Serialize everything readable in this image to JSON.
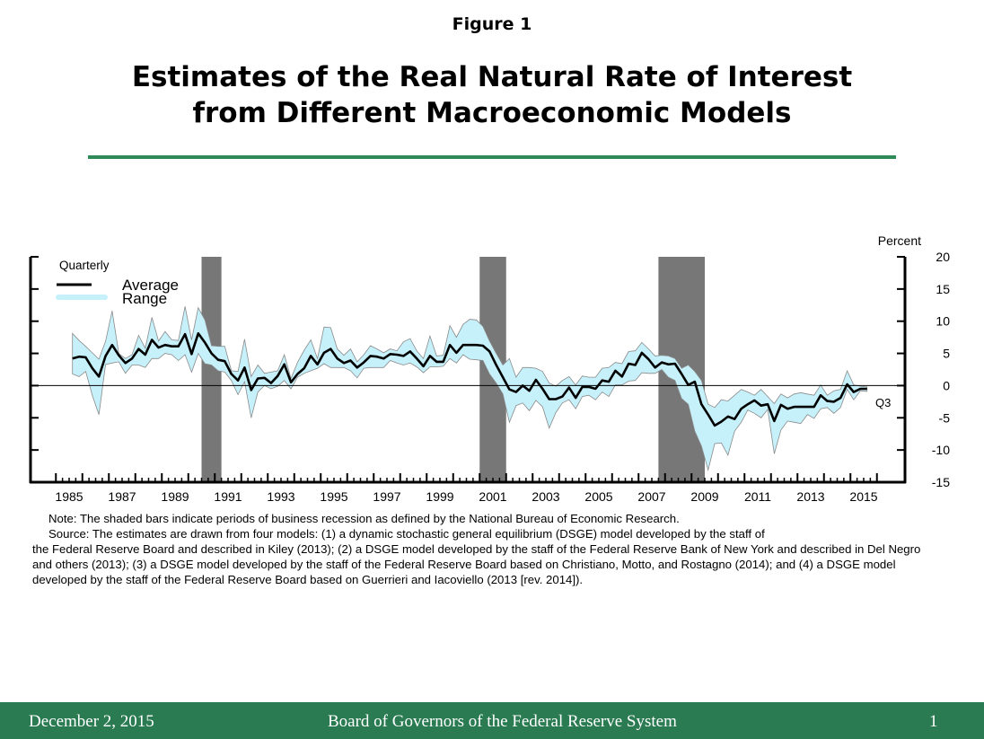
{
  "header": {
    "figure_label": "Figure 1",
    "title_line1": "Estimates of the Real Natural Rate of Interest",
    "title_line2": "from Different Macroeconomic Models"
  },
  "colors": {
    "accent_green": "#2a7b52",
    "range_fill": "#c6f1fb",
    "range_edge": "#8a8a8a",
    "average_line": "#000000",
    "recession": "#777777"
  },
  "chart_data": {
    "type": "line",
    "title": "",
    "ylabel": "Percent",
    "frequency_label": "Quarterly",
    "last_point_label": "Q3",
    "ylim": [
      -15,
      20
    ],
    "yticks": [
      20,
      15,
      10,
      5,
      0,
      -5,
      -10,
      -15
    ],
    "xlim": [
      1985,
      2016
    ],
    "xtick_labels": [
      "1985",
      "1987",
      "1989",
      "1991",
      "1993",
      "1995",
      "1997",
      "1999",
      "2001",
      "2003",
      "2005",
      "2007",
      "2009",
      "2011",
      "2013",
      "2015"
    ],
    "legend": {
      "placement": "top-left",
      "entries": [
        "Average",
        "Range"
      ]
    },
    "start": "1985Q3",
    "end": "2015Q3",
    "recessions": [
      [
        "1990Q3",
        "1991Q1"
      ],
      [
        "2001Q1",
        "2001Q4"
      ],
      [
        "2007Q4",
        "2009Q2"
      ]
    ],
    "series": [
      {
        "name": "Average",
        "values": [
          4.2,
          4.5,
          4.4,
          2.7,
          1.4,
          4.6,
          6.3,
          4.7,
          3.5,
          4.2,
          5.7,
          4.8,
          7.1,
          5.9,
          6.3,
          6.1,
          6.1,
          8.0,
          4.9,
          8.1,
          6.7,
          5.0,
          4.0,
          3.8,
          1.8,
          0.8,
          2.8,
          -0.7,
          1.1,
          1.2,
          0.4,
          1.5,
          3.3,
          0.5,
          1.8,
          2.7,
          4.6,
          3.3,
          5.1,
          5.7,
          4.2,
          3.5,
          3.9,
          2.8,
          3.6,
          4.6,
          4.5,
          4.2,
          4.9,
          4.8,
          4.6,
          5.3,
          4.2,
          3.0,
          4.6,
          3.7,
          3.7,
          6.3,
          5.1,
          6.3,
          6.3,
          6.3,
          6.2,
          5.3,
          3.2,
          1.3,
          -0.6,
          -1.0,
          0,
          -0.8,
          0.9,
          -0.5,
          -2.1,
          -2.1,
          -1.7,
          -0.3,
          -1.9,
          -0.2,
          -0.2,
          -0.5,
          0.8,
          0.6,
          2.3,
          1.4,
          3.4,
          3.2,
          5.1,
          4.1,
          2.8,
          3.6,
          3.3,
          3.4,
          1.8,
          0.1,
          0.6,
          -2.9,
          -4.5,
          -6.2,
          -5.6,
          -4.8,
          -5.2,
          -3.6,
          -2.9,
          -2.3,
          -3.1,
          -2.9,
          -5.5,
          -3.0,
          -3.6,
          -3.3,
          -3.3,
          -3.3,
          -3.3,
          -1.5,
          -2.4,
          -2.5,
          -1.9,
          0.2,
          -1.0,
          -0.5,
          -0.5
        ]
      },
      {
        "name": "Range",
        "low": [
          1.8,
          1.4,
          2.2,
          -1.5,
          -4.5,
          3.3,
          3.5,
          3.7,
          1.9,
          3.2,
          3.2,
          2.8,
          4.2,
          4.2,
          5.0,
          4.8,
          3.9,
          4.8,
          2.1,
          5.0,
          3.4,
          3.2,
          2.3,
          2.1,
          0.8,
          -1.4,
          0.6,
          -5.0,
          -1.0,
          0,
          -0.5,
          -0.1,
          0.8,
          -0.5,
          1.3,
          1.9,
          2.3,
          2.7,
          3.4,
          2.8,
          2.8,
          2.8,
          2.3,
          1.2,
          2.7,
          2.8,
          2.8,
          2.8,
          3.9,
          3.5,
          3.2,
          3.5,
          2.9,
          2.0,
          2.9,
          2.9,
          3.0,
          4.2,
          3.5,
          4.8,
          4.1,
          4.0,
          3.9,
          1.8,
          0.4,
          -1.3,
          -5.7,
          -3.1,
          -2.7,
          -3.9,
          -2.3,
          -3.3,
          -6.6,
          -4.2,
          -2.7,
          -2.2,
          -3.6,
          -1.7,
          -1.5,
          -2.2,
          -1.0,
          -1.7,
          0.1,
          0.1,
          0.7,
          0.8,
          2.0,
          1.9,
          1.9,
          2.5,
          1.3,
          0.8,
          -2.0,
          -2.9,
          -7.1,
          -9.4,
          -13.1,
          -9.0,
          -8.9,
          -10.8,
          -7.1,
          -5.7,
          -3.8,
          -4.3,
          -5.0,
          -3.7,
          -10.6,
          -6.9,
          -5.5,
          -5.7,
          -5.9,
          -4.5,
          -5.1,
          -3.6,
          -3.4,
          -4.3,
          -3.4,
          -0.6,
          -2.2,
          -0.8,
          -0.9
        ],
        "high": [
          8.1,
          7.0,
          6.1,
          5.1,
          4.1,
          6.9,
          11.6,
          5.0,
          4.2,
          4.8,
          7.8,
          5.8,
          10.6,
          6.9,
          8.4,
          7.1,
          7.0,
          12.3,
          7.1,
          12.1,
          10.2,
          6.2,
          6.1,
          6.1,
          2.3,
          2.2,
          7.2,
          1.4,
          3.2,
          1.9,
          2.1,
          2.3,
          4.8,
          1.1,
          3.6,
          5.5,
          7.1,
          4.2,
          9.1,
          9.0,
          5.7,
          4.7,
          5.7,
          3.7,
          4.8,
          6.2,
          5.7,
          5.1,
          5.7,
          5.4,
          6.8,
          7.3,
          5.4,
          4.2,
          7.7,
          4.6,
          4.7,
          9.3,
          7.5,
          9.5,
          10.3,
          10.2,
          9.2,
          6.9,
          5.0,
          3.2,
          4.2,
          1.3,
          2.8,
          2.8,
          2.7,
          2.2,
          0.4,
          -0.1,
          0.8,
          1.4,
          0.1,
          1.5,
          1.3,
          1.3,
          2.7,
          2.8,
          3.6,
          3.4,
          5.3,
          5.4,
          6.7,
          5.7,
          4.6,
          4.7,
          4.6,
          4.2,
          2.7,
          3.2,
          2.2,
          0.8,
          -2.9,
          -3.4,
          -2.2,
          -2.4,
          -1.5,
          -0.6,
          -1.0,
          -1.5,
          -0.6,
          -1.7,
          -2.8,
          -1.3,
          -1.9,
          -1.3,
          -1.1,
          -1.3,
          -1.5,
          0.1,
          -1.5,
          -0.8,
          -0.6,
          2.3,
          0.1,
          -0.1,
          -0.2
        ]
      }
    ]
  },
  "notes": {
    "note": "Note:  The shaded bars indicate periods of business recession as defined by the National Bureau of Economic Research.",
    "source_lead": "Source:  The estimates are drawn from four models: (1) a dynamic stochastic general equilibrium (DSGE) model developed by the staff of",
    "source_rest": "the Federal Reserve Board and described in Kiley (2013); (2) a DSGE model developed by the staff of the Federal Reserve Bank of New York and described in Del Negro and others (2013); (3) a DSGE model developed by the staff of the Federal Reserve Board based on Christiano, Motto, and Rostagno (2014); and (4) a DSGE model developed by the staff of the Federal Reserve Board based on Guerrieri and Iacoviello (2013 [rev. 2014])."
  },
  "footer": {
    "date": "December 2, 2015",
    "organization": "Board of Governors of the Federal Reserve System",
    "page": "1"
  }
}
